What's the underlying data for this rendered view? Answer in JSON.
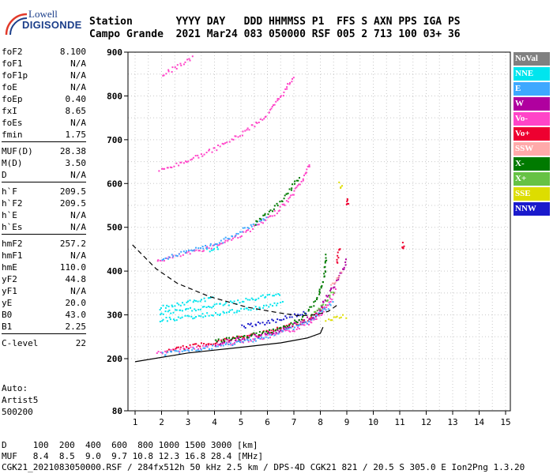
{
  "logo": {
    "line1": "Lowell",
    "line2": "DIGISONDE"
  },
  "header": {
    "line1": "Station       YYYY DAY   DDD HHMMSS P1  FFS S AXN PPS IGA PS",
    "line2": "Campo Grande  2021 Mar24 083 050000 RSF 005 2 713 100 03+ 36"
  },
  "params": [
    {
      "label": "foF2",
      "value": "8.100"
    },
    {
      "label": "foF1",
      "value": "N/A"
    },
    {
      "label": "foF1p",
      "value": "N/A"
    },
    {
      "label": "foE",
      "value": "N/A"
    },
    {
      "label": "foEp",
      "value": "0.40"
    },
    {
      "label": "fxI",
      "value": "8.65"
    },
    {
      "label": "foEs",
      "value": "N/A"
    },
    {
      "label": "fmin",
      "value": "1.75"
    },
    {
      "sep": true
    },
    {
      "label": "MUF(D)",
      "value": "28.38"
    },
    {
      "label": "M(D)",
      "value": "3.50"
    },
    {
      "label": "D",
      "value": "N/A"
    },
    {
      "sep": true
    },
    {
      "label": "h`F",
      "value": "209.5"
    },
    {
      "label": "h`F2",
      "value": "209.5"
    },
    {
      "label": "h`E",
      "value": "N/A"
    },
    {
      "label": "h`Es",
      "value": "N/A"
    },
    {
      "sep": true
    },
    {
      "label": "hmF2",
      "value": "257.2"
    },
    {
      "label": "hmF1",
      "value": "N/A"
    },
    {
      "label": "hmE",
      "value": "110.0"
    },
    {
      "label": "yF2",
      "value": "44.8"
    },
    {
      "label": "yF1",
      "value": "N/A"
    },
    {
      "label": "yE",
      "value": "20.0"
    },
    {
      "label": "B0",
      "value": "43.0"
    },
    {
      "label": "B1",
      "value": "2.25"
    },
    {
      "sep": true
    },
    {
      "label": "C-level",
      "value": "22"
    }
  ],
  "auto": {
    "line1": "Auto:",
    "line2": "Artist5",
    "line3": "500200"
  },
  "footer": {
    "d_line": "D     100  200  400  600  800 1000 1500 3000 [km]",
    "muf_line": "MUF   8.4  8.5  9.0  9.7 10.8 12.3 16.8 28.4 [MHz]",
    "info_line": "CGK21_2021083050000.RSF / 284fx512h 50 kHz 2.5 km / DPS-4D CGK21 821 / 20.5 S 305.0 E Ion2Png 1.3.20"
  },
  "legend": [
    {
      "label": "NoVal",
      "color": "#808080"
    },
    {
      "label": "NNE",
      "color": "#00e5ee"
    },
    {
      "label": "E",
      "color": "#3ea8ff"
    },
    {
      "label": "W",
      "color": "#b0009f"
    },
    {
      "label": "Vo-",
      "color": "#ff44c8"
    },
    {
      "label": "Vo+",
      "color": "#ee0030"
    },
    {
      "label": "SSW",
      "color": "#ffaaaa"
    },
    {
      "label": "X-",
      "color": "#007a00"
    },
    {
      "label": "X+",
      "color": "#66c244"
    },
    {
      "label": "SSE",
      "color": "#dddd00"
    },
    {
      "label": "NNW",
      "color": "#1a1acc"
    }
  ],
  "chart_data": {
    "type": "scatter",
    "xlim": [
      0.8,
      15.1
    ],
    "ylim": [
      80,
      900
    ],
    "x_ticks": [
      "1",
      "2",
      "3",
      "4",
      "5",
      "6",
      "7",
      "8",
      "9",
      "10",
      "11",
      "12",
      "13",
      "14",
      "15"
    ],
    "y_ticks": [
      "80",
      "200",
      "300",
      "400",
      "500",
      "600",
      "700",
      "800",
      "900"
    ],
    "grid": true,
    "series": [
      {
        "name": "Vo-",
        "color": "#ff44c8",
        "traces": [
          {
            "points": [
              [
                1.8,
                215
              ],
              [
                3,
                225
              ],
              [
                4,
                232
              ],
              [
                5,
                242
              ],
              [
                6,
                252
              ],
              [
                7,
                268
              ],
              [
                7.6,
                285
              ],
              [
                8,
                305
              ],
              [
                8.3,
                330
              ],
              [
                8.6,
                360
              ]
            ]
          },
          {
            "points": [
              [
                1.8,
                425
              ],
              [
                3,
                442
              ],
              [
                4,
                460
              ],
              [
                5,
                485
              ],
              [
                6,
                520
              ],
              [
                6.8,
                565
              ],
              [
                7.3,
                610
              ],
              [
                7.6,
                650
              ]
            ]
          },
          {
            "points": [
              [
                1.9,
                630
              ],
              [
                3,
                655
              ],
              [
                4,
                680
              ],
              [
                5,
                715
              ],
              [
                6,
                760
              ],
              [
                6.6,
                810
              ],
              [
                7,
                850
              ]
            ]
          },
          {
            "points": [
              [
                2,
                850
              ],
              [
                2.6,
                870
              ],
              [
                3.2,
                890
              ]
            ]
          }
        ]
      },
      {
        "name": "Vo+",
        "color": "#ee0030",
        "traces": [
          {
            "points": [
              [
                2.2,
                220
              ],
              [
                4,
                240
              ],
              [
                6,
                262
              ],
              [
                7.5,
                290
              ],
              [
                8.2,
                320
              ]
            ]
          },
          {
            "points": [
              [
                8.6,
                420
              ],
              [
                8.7,
                460
              ]
            ]
          },
          {
            "points": [
              [
                9,
                560
              ]
            ]
          },
          {
            "points": [
              [
                11.1,
                460
              ]
            ]
          }
        ]
      },
      {
        "name": "NNE",
        "color": "#00e5ee",
        "traces": [
          {
            "points": [
              [
                1.9,
                290
              ],
              [
                3,
                296
              ],
              [
                4,
                304
              ],
              [
                5,
                312
              ],
              [
                6,
                322
              ],
              [
                6.6,
                330
              ]
            ]
          },
          {
            "points": [
              [
                1.9,
                305
              ],
              [
                3,
                313
              ],
              [
                4,
                322
              ],
              [
                5,
                333
              ],
              [
                6,
                345
              ],
              [
                6.5,
                352
              ]
            ]
          },
          {
            "points": [
              [
                1.9,
                318
              ],
              [
                3,
                330
              ],
              [
                4,
                340
              ]
            ]
          },
          {
            "points": [
              [
                3.7,
                450
              ],
              [
                4.2,
                455
              ]
            ]
          }
        ]
      },
      {
        "name": "E",
        "color": "#3ea8ff",
        "traces": [
          {
            "points": [
              [
                2,
                212
              ],
              [
                4,
                228
              ],
              [
                6,
                252
              ],
              [
                7.5,
                285
              ],
              [
                8.5,
                330
              ]
            ]
          },
          {
            "points": [
              [
                2,
                430
              ],
              [
                4,
                462
              ],
              [
                6,
                525
              ]
            ]
          }
        ]
      },
      {
        "name": "W",
        "color": "#b0009f",
        "traces": [
          {
            "points": [
              [
                4,
                236
              ],
              [
                6,
                258
              ],
              [
                7.8,
                300
              ],
              [
                8.6,
                380
              ],
              [
                9,
                430
              ]
            ]
          }
        ]
      },
      {
        "name": "X-",
        "color": "#007a00",
        "traces": [
          {
            "points": [
              [
                4,
                240
              ],
              [
                6,
                262
              ],
              [
                7.2,
                290
              ],
              [
                7.8,
                330
              ],
              [
                8.1,
                380
              ],
              [
                8.2,
                440
              ]
            ]
          },
          {
            "points": [
              [
                5.5,
                510
              ],
              [
                6.5,
                560
              ],
              [
                7.2,
                620
              ]
            ]
          }
        ]
      },
      {
        "name": "X+",
        "color": "#66c244",
        "traces": [
          {
            "points": [
              [
                7.6,
                300
              ],
              [
                8.2,
                330
              ],
              [
                8.5,
                360
              ]
            ]
          }
        ]
      },
      {
        "name": "SSE",
        "color": "#dddd00",
        "traces": [
          {
            "points": [
              [
                8.2,
                292
              ],
              [
                8.7,
                295
              ],
              [
                9,
                300
              ]
            ]
          },
          {
            "points": [
              [
                8.7,
                600
              ],
              [
                8.8,
                590
              ]
            ]
          }
        ]
      },
      {
        "name": "NNW",
        "color": "#1a1acc",
        "traces": [
          {
            "points": [
              [
                5,
                275
              ],
              [
                6,
                285
              ],
              [
                7,
                300
              ],
              [
                7.5,
                310
              ]
            ]
          }
        ]
      },
      {
        "name": "SSW",
        "color": "#ffaaaa",
        "traces": [
          {
            "points": [
              [
                8.4,
                370
              ],
              [
                8.8,
                400
              ]
            ]
          }
        ]
      }
    ],
    "profile_solid": [
      [
        1,
        193
      ],
      [
        3,
        213
      ],
      [
        5,
        226
      ],
      [
        6.5,
        236
      ],
      [
        7.5,
        247
      ],
      [
        8,
        258
      ],
      [
        8.1,
        272
      ]
    ],
    "profile_dashed": [
      [
        0.9,
        460
      ],
      [
        1.8,
        405
      ],
      [
        2.6,
        372
      ],
      [
        3.8,
        342
      ],
      [
        5.2,
        318
      ],
      [
        6.4,
        305
      ],
      [
        7.2,
        298
      ],
      [
        7.8,
        300
      ],
      [
        8.3,
        308
      ],
      [
        8.7,
        325
      ]
    ]
  }
}
